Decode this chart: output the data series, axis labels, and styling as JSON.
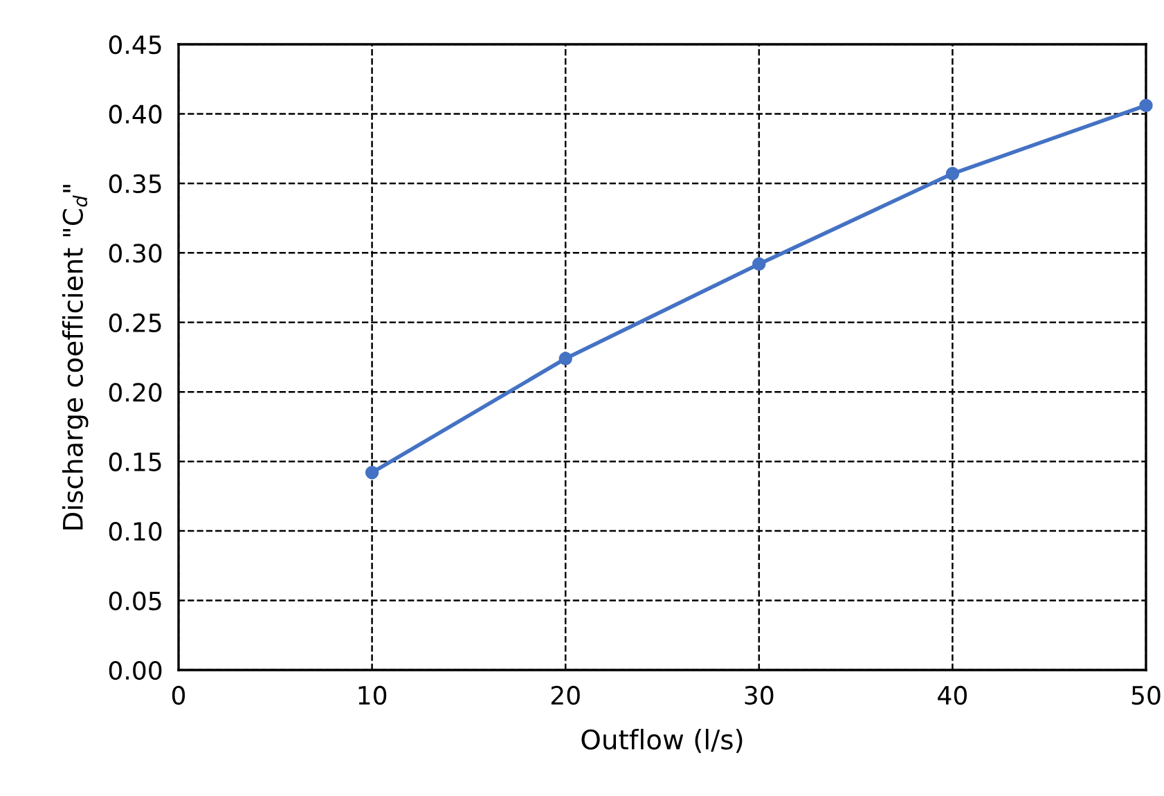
{
  "chart_data": {
    "type": "line",
    "xlabel": "Outflow (l/s)",
    "ylabel": "Discharge coefficient \"C$_{d}$\"",
    "x": [
      10,
      20,
      30,
      40,
      50
    ],
    "series": [
      {
        "color": "#4472c4",
        "values": [
          0.142,
          0.224,
          0.292,
          0.357,
          0.406
        ]
      }
    ],
    "xlim": [
      0,
      50
    ],
    "xticks": [
      0,
      10,
      20,
      30,
      40,
      50
    ],
    "ylim": [
      0,
      0.45
    ],
    "yticks": [
      {
        "value": 0,
        "label": "0.00"
      },
      {
        "value": 0.05,
        "label": "0.05"
      },
      {
        "value": 0.1,
        "label": "0.10"
      },
      {
        "value": 0.15,
        "label": "0.15"
      },
      {
        "value": 0.2,
        "label": "0.20"
      },
      {
        "value": 0.25,
        "label": "0.25"
      },
      {
        "value": 0.3,
        "label": "0.30"
      },
      {
        "value": 0.35,
        "label": "0.35"
      },
      {
        "value": 0.4,
        "label": "0.40"
      },
      {
        "value": 0.45,
        "label": "0.45"
      }
    ],
    "grid": true,
    "marker": "circle",
    "line_style": "solid"
  }
}
